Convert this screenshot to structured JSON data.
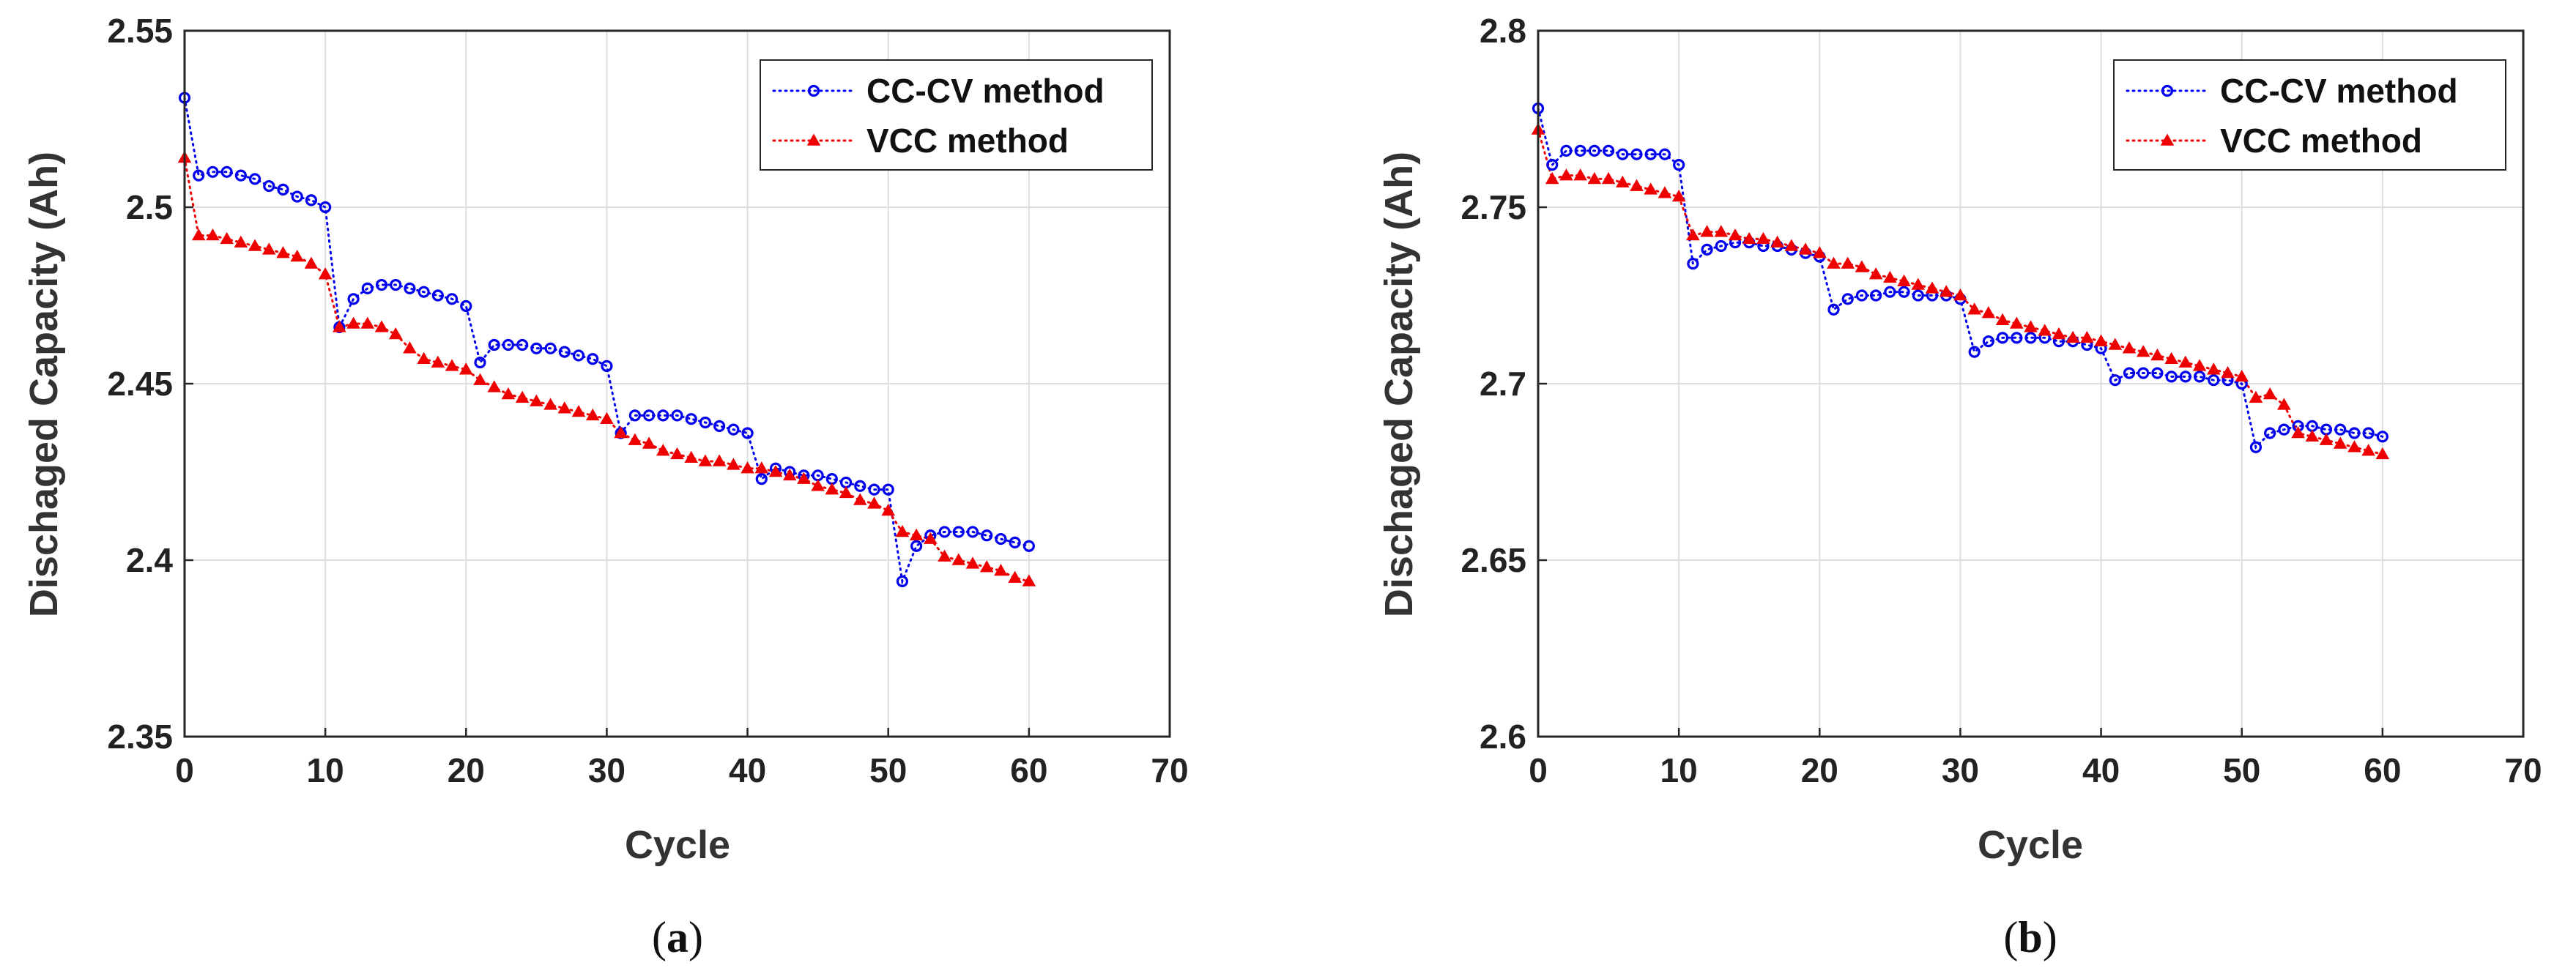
{
  "chart_data": [
    {
      "type": "line",
      "panel": "a",
      "caption": {
        "open": "(",
        "letter": "a",
        "close": ")"
      },
      "xlabel": "Cycle",
      "ylabel": "Dischaged Capacity (Ah)",
      "xlim": [
        0,
        70
      ],
      "ylim": [
        2.35,
        2.55
      ],
      "xticks": [
        "0",
        "10",
        "20",
        "30",
        "40",
        "50",
        "60",
        "70"
      ],
      "yticks": [
        "2.35",
        "2.4",
        "2.45",
        "2.5",
        "2.55"
      ],
      "grid": true,
      "legend_position": "top-right",
      "series": [
        {
          "name": "CC-CV method",
          "color": "#0000ee",
          "marker": "circle",
          "x": [
            0,
            1,
            2,
            3,
            4,
            5,
            6,
            7,
            8,
            9,
            10,
            11,
            12,
            13,
            14,
            15,
            16,
            17,
            18,
            19,
            20,
            21,
            22,
            23,
            24,
            25,
            26,
            27,
            28,
            29,
            30,
            31,
            32,
            33,
            34,
            35,
            36,
            37,
            38,
            39,
            40,
            41,
            42,
            43,
            44,
            45,
            46,
            47,
            48,
            49,
            50,
            51,
            52,
            53,
            54,
            55,
            56,
            57,
            58,
            59,
            60
          ],
          "y": [
            2.531,
            2.509,
            2.51,
            2.51,
            2.509,
            2.508,
            2.506,
            2.505,
            2.503,
            2.502,
            2.5,
            2.466,
            2.474,
            2.477,
            2.478,
            2.478,
            2.477,
            2.476,
            2.475,
            2.474,
            2.472,
            2.456,
            2.461,
            2.461,
            2.461,
            2.46,
            2.46,
            2.459,
            2.458,
            2.457,
            2.455,
            2.436,
            2.441,
            2.441,
            2.441,
            2.441,
            2.44,
            2.439,
            2.438,
            2.437,
            2.436,
            2.423,
            2.426,
            2.425,
            2.424,
            2.424,
            2.423,
            2.422,
            2.421,
            2.42,
            2.42,
            2.394,
            2.404,
            2.407,
            2.408,
            2.408,
            2.408,
            2.407,
            2.406,
            2.405,
            2.404
          ]
        },
        {
          "name": "VCC method",
          "color": "#ee0000",
          "marker": "triangle",
          "x": [
            0,
            1,
            2,
            3,
            4,
            5,
            6,
            7,
            8,
            9,
            10,
            11,
            12,
            13,
            14,
            15,
            16,
            17,
            18,
            19,
            20,
            21,
            22,
            23,
            24,
            25,
            26,
            27,
            28,
            29,
            30,
            31,
            32,
            33,
            34,
            35,
            36,
            37,
            38,
            39,
            40,
            41,
            42,
            43,
            44,
            45,
            46,
            47,
            48,
            49,
            50,
            51,
            52,
            53,
            54,
            55,
            56,
            57,
            58,
            59,
            60
          ],
          "y": [
            2.514,
            2.492,
            2.492,
            2.491,
            2.49,
            2.489,
            2.488,
            2.487,
            2.486,
            2.484,
            2.481,
            2.466,
            2.467,
            2.467,
            2.466,
            2.464,
            2.46,
            2.457,
            2.456,
            2.455,
            2.454,
            2.451,
            2.449,
            2.447,
            2.446,
            2.445,
            2.444,
            2.443,
            2.442,
            2.441,
            2.44,
            2.436,
            2.434,
            2.433,
            2.431,
            2.43,
            2.429,
            2.428,
            2.428,
            2.427,
            2.426,
            2.426,
            2.425,
            2.424,
            2.423,
            2.421,
            2.42,
            2.419,
            2.417,
            2.416,
            2.414,
            2.408,
            2.407,
            2.406,
            2.401,
            2.4,
            2.399,
            2.398,
            2.397,
            2.395,
            2.394
          ]
        }
      ]
    },
    {
      "type": "line",
      "panel": "b",
      "caption": {
        "open": "(",
        "letter": "b",
        "close": ")"
      },
      "xlabel": "Cycle",
      "ylabel": "Dischaged Capacity (Ah)",
      "xlim": [
        0,
        70
      ],
      "ylim": [
        2.6,
        2.8
      ],
      "xticks": [
        "0",
        "10",
        "20",
        "30",
        "40",
        "50",
        "60",
        "70"
      ],
      "yticks": [
        "2.6",
        "2.65",
        "2.7",
        "2.75",
        "2.8"
      ],
      "grid": true,
      "legend_position": "top-right",
      "series": [
        {
          "name": "CC-CV method",
          "color": "#0000ee",
          "marker": "circle",
          "x": [
            0,
            1,
            2,
            3,
            4,
            5,
            6,
            7,
            8,
            9,
            10,
            11,
            12,
            13,
            14,
            15,
            16,
            17,
            18,
            19,
            20,
            21,
            22,
            23,
            24,
            25,
            26,
            27,
            28,
            29,
            30,
            31,
            32,
            33,
            34,
            35,
            36,
            37,
            38,
            39,
            40,
            41,
            42,
            43,
            44,
            45,
            46,
            47,
            48,
            49,
            50,
            51,
            52,
            53,
            54,
            55,
            56,
            57,
            58,
            59,
            60
          ],
          "y": [
            2.778,
            2.762,
            2.766,
            2.766,
            2.766,
            2.766,
            2.765,
            2.765,
            2.765,
            2.765,
            2.762,
            2.734,
            2.738,
            2.739,
            2.74,
            2.74,
            2.739,
            2.739,
            2.738,
            2.737,
            2.736,
            2.721,
            2.724,
            2.725,
            2.725,
            2.726,
            2.726,
            2.725,
            2.725,
            2.725,
            2.724,
            2.709,
            2.712,
            2.713,
            2.713,
            2.713,
            2.713,
            2.712,
            2.712,
            2.711,
            2.71,
            2.701,
            2.703,
            2.703,
            2.703,
            2.702,
            2.702,
            2.702,
            2.701,
            2.701,
            2.7,
            2.682,
            2.686,
            2.687,
            2.688,
            2.688,
            2.687,
            2.687,
            2.686,
            2.686,
            2.685
          ]
        },
        {
          "name": "VCC method",
          "color": "#ee0000",
          "marker": "triangle",
          "x": [
            0,
            1,
            2,
            3,
            4,
            5,
            6,
            7,
            8,
            9,
            10,
            11,
            12,
            13,
            14,
            15,
            16,
            17,
            18,
            19,
            20,
            21,
            22,
            23,
            24,
            25,
            26,
            27,
            28,
            29,
            30,
            31,
            32,
            33,
            34,
            35,
            36,
            37,
            38,
            39,
            40,
            41,
            42,
            43,
            44,
            45,
            46,
            47,
            48,
            49,
            50,
            51,
            52,
            53,
            54,
            55,
            56,
            57,
            58,
            59,
            60
          ],
          "y": [
            2.772,
            2.758,
            2.759,
            2.759,
            2.758,
            2.758,
            2.757,
            2.756,
            2.755,
            2.754,
            2.753,
            2.742,
            2.743,
            2.743,
            2.742,
            2.741,
            2.741,
            2.74,
            2.739,
            2.738,
            2.737,
            2.734,
            2.734,
            2.733,
            2.731,
            2.73,
            2.729,
            2.728,
            2.727,
            2.726,
            2.725,
            2.721,
            2.72,
            2.718,
            2.717,
            2.716,
            2.715,
            2.714,
            2.713,
            2.713,
            2.712,
            2.711,
            2.71,
            2.709,
            2.708,
            2.707,
            2.706,
            2.705,
            2.704,
            2.703,
            2.702,
            2.696,
            2.697,
            2.694,
            2.686,
            2.685,
            2.684,
            2.683,
            2.682,
            2.681,
            2.68
          ]
        }
      ]
    }
  ]
}
